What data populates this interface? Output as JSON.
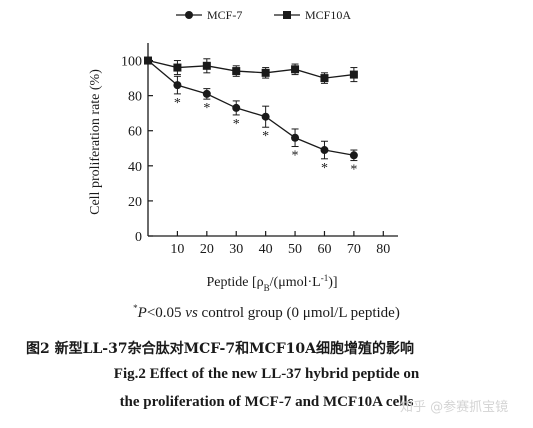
{
  "chart_data": {
    "type": "line",
    "x": [
      0,
      10,
      20,
      30,
      40,
      50,
      60,
      70
    ],
    "x_ticks": [
      "10",
      "20",
      "30",
      "40",
      "50",
      "60",
      "70",
      "80"
    ],
    "y_ticks": [
      "0",
      "20",
      "40",
      "60",
      "80",
      "100"
    ],
    "xlim": [
      0,
      85
    ],
    "ylim": [
      0,
      110
    ],
    "grid": false,
    "legend_position": "top",
    "ylabel": "Cell proliferation rate (%)",
    "xlabel_parts": {
      "pre": "Peptide [ρ",
      "sub": "B",
      "mid": "/(μmol·L",
      "sup": "-1",
      "post": ")]"
    },
    "series": [
      {
        "name": "MCF-7",
        "marker": "circle",
        "values": [
          100,
          86,
          81,
          73,
          68,
          56,
          49,
          46
        ],
        "errors": [
          0,
          5,
          3,
          4,
          6,
          5,
          5,
          3
        ],
        "significant": [
          false,
          true,
          true,
          true,
          true,
          true,
          true,
          true
        ]
      },
      {
        "name": "MCF10A",
        "marker": "square",
        "values": [
          100,
          96,
          97,
          94,
          93,
          95,
          90,
          92
        ],
        "errors": [
          0,
          4,
          4,
          3,
          3,
          3,
          3,
          4
        ],
        "significant": [
          false,
          false,
          false,
          false,
          false,
          false,
          false,
          false
        ]
      }
    ],
    "significance_symbol": "*",
    "color": "#1a1a1a"
  },
  "footnote": {
    "symbol": "*",
    "p": "P",
    "text1": "<0.05 ",
    "vs": "vs",
    "text2": " control group (0 μmol/L peptide)"
  },
  "caption_cn": "图2 新型LL-37杂合肽对MCF-7和MCF10A细胞增殖的影响",
  "caption_en_1": "Fig.2  Effect of the new LL-37 hybrid peptide on",
  "caption_en_2": "the proliferation of MCF-7 and MCF10A cells",
  "watermark": "知乎 @参赛抓宝镜"
}
